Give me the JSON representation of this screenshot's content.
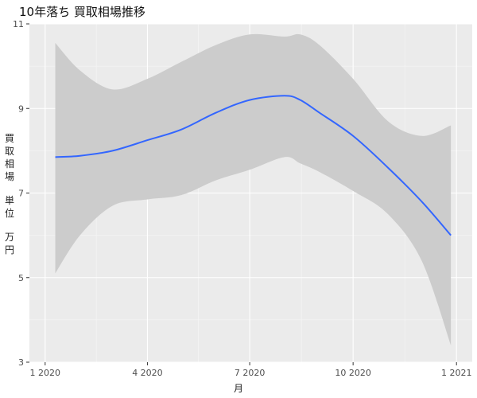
{
  "chart_data": {
    "type": "line",
    "title": "10年落ち 買取相場推移",
    "xlabel": "月",
    "ylabel_parts": [
      "買取相場",
      "単位",
      "万円"
    ],
    "ylim": [
      3,
      11
    ],
    "yticks": [
      3,
      5,
      7,
      9,
      11
    ],
    "xticks": [
      {
        "value": "2020-01-01",
        "label": "1 2020"
      },
      {
        "value": "2020-04-01",
        "label": "4 2020"
      },
      {
        "value": "2020-07-01",
        "label": "7 2020"
      },
      {
        "value": "2020-10-01",
        "label": "10 2020"
      },
      {
        "value": "2021-01-01",
        "label": "1 2021"
      }
    ],
    "xlim": [
      "2019-12-18",
      "2021-01-15"
    ],
    "grid": true,
    "series": [
      {
        "color": "#3366ff",
        "x": [
          "2020-01-10",
          "2020-02-01",
          "2020-03-01",
          "2020-04-01",
          "2020-05-01",
          "2020-06-01",
          "2020-07-01",
          "2020-08-01",
          "2020-08-15",
          "2020-09-01",
          "2020-10-01",
          "2020-11-01",
          "2020-12-01",
          "2020-12-27"
        ],
        "y": [
          7.85,
          7.88,
          8.0,
          8.25,
          8.5,
          8.9,
          9.2,
          9.3,
          9.2,
          8.9,
          8.35,
          7.6,
          6.8,
          6.0
        ]
      }
    ],
    "confidence_band": {
      "color": "#cccccc",
      "x": [
        "2020-01-10",
        "2020-02-01",
        "2020-03-01",
        "2020-04-01",
        "2020-05-01",
        "2020-06-01",
        "2020-07-01",
        "2020-08-01",
        "2020-08-15",
        "2020-09-01",
        "2020-10-01",
        "2020-11-01",
        "2020-12-01",
        "2020-12-27"
      ],
      "upper": [
        10.55,
        9.9,
        9.45,
        9.7,
        10.1,
        10.5,
        10.75,
        10.7,
        10.75,
        10.5,
        9.7,
        8.7,
        8.35,
        8.6
      ],
      "lower": [
        5.1,
        6.0,
        6.7,
        6.85,
        6.95,
        7.3,
        7.55,
        7.85,
        7.7,
        7.5,
        7.05,
        6.5,
        5.4,
        3.4
      ]
    }
  }
}
